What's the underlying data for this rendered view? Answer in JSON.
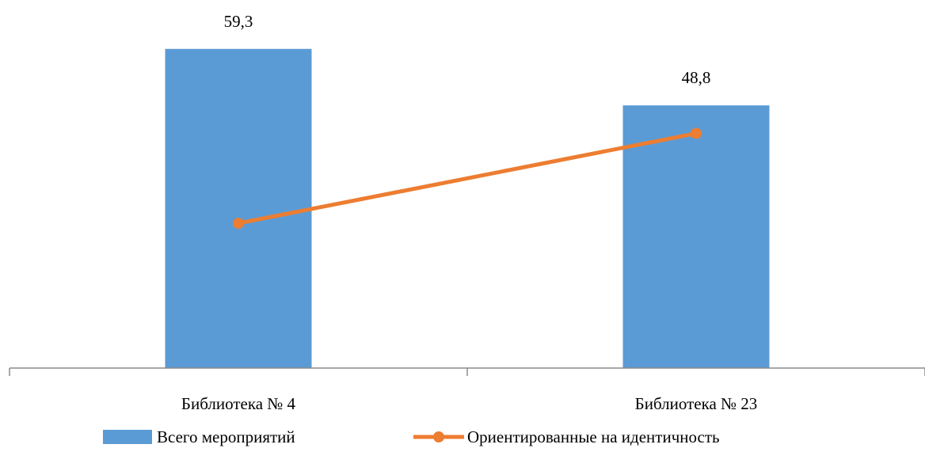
{
  "chart_data": {
    "type": "bar",
    "categories": [
      "Библиотека № 4",
      "Библиотека № 23"
    ],
    "series": [
      {
        "name": "Всего мероприятий",
        "type": "bar",
        "values": [
          59.3,
          48.8
        ],
        "data_labels": [
          "59,3",
          "48,8"
        ],
        "color": "#5B9BD5"
      },
      {
        "name": "Ориентированные на идентичность",
        "type": "line",
        "values": [
          26.9,
          43.6
        ],
        "color": "#ED7D31"
      }
    ],
    "ylim": [
      0,
      70
    ],
    "grid": false,
    "legend_position": "bottom"
  }
}
